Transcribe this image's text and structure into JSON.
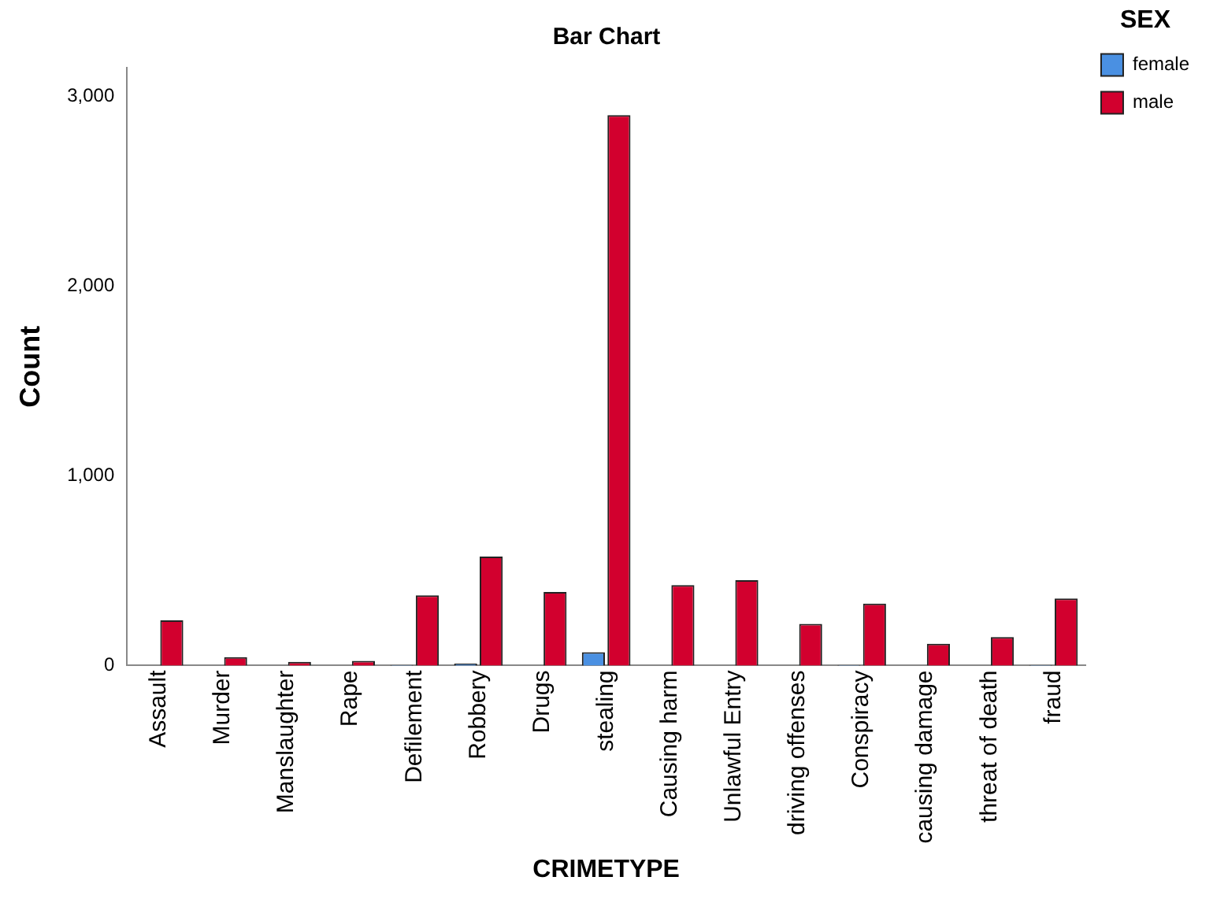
{
  "chart_data": {
    "type": "bar",
    "title": "Bar Chart",
    "xlabel": "CRIMETYPE",
    "ylabel": "Count",
    "legend_title": "SEX",
    "categories": [
      "Assault",
      "Murder",
      "Manslaughter",
      "Rape",
      "Defilement",
      "Robbery",
      "Drugs",
      "stealing",
      "Causing harm",
      "Unlawful Entry",
      "driving offenses",
      "Conspiracy",
      "causing damage",
      "threat of death",
      "fraud"
    ],
    "series": [
      {
        "name": "female",
        "color": "#4a90e2",
        "values": [
          null,
          null,
          null,
          null,
          3,
          10,
          null,
          70,
          null,
          null,
          null,
          3,
          null,
          null,
          3
        ]
      },
      {
        "name": "male",
        "color": "#d2002e",
        "values": [
          238,
          44,
          20,
          25,
          370,
          574,
          388,
          2900,
          424,
          450,
          220,
          326,
          115,
          150,
          353
        ]
      }
    ],
    "ylim": [
      0,
      3150
    ],
    "yticks": [
      {
        "value": 0,
        "label": "0"
      },
      {
        "value": 1000,
        "label": "1,000"
      },
      {
        "value": 2000,
        "label": "2,000"
      },
      {
        "value": 3000,
        "label": "3,000"
      }
    ],
    "grid": false,
    "legend": "top right"
  }
}
